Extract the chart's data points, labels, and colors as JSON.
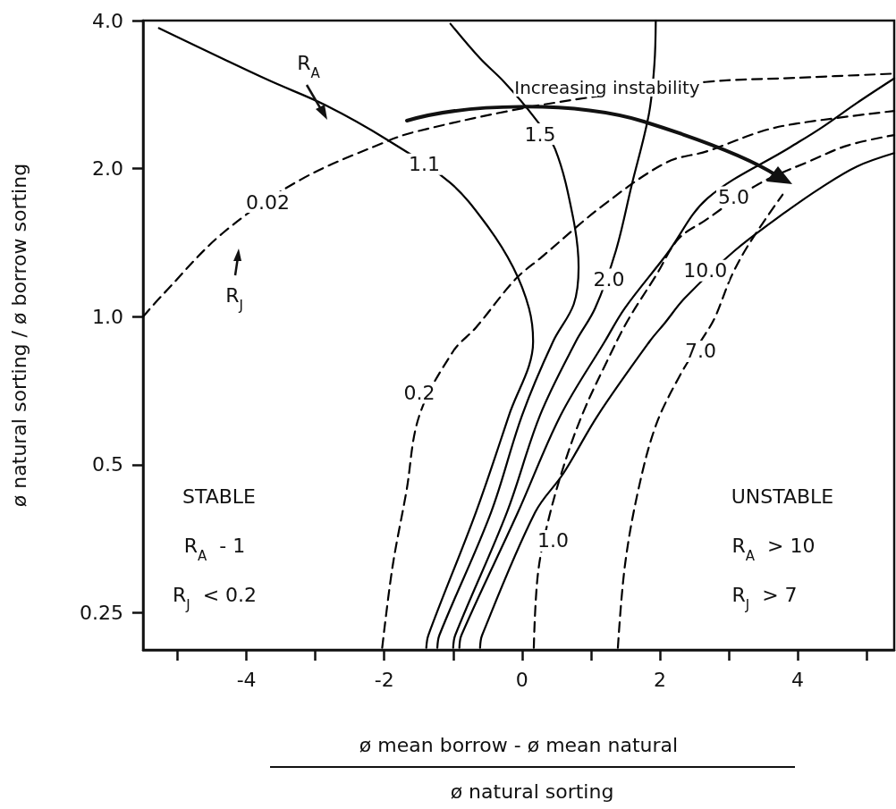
{
  "chart_data": {
    "type": "line",
    "xlabel": "ø mean borrow - ø mean natural",
    "ylabel": "ø natural sorting / ø borrow sorting",
    "log": "y",
    "grid": false,
    "marker": "none",
    "xlim": [
      -5.5,
      5.4
    ],
    "xticks": [
      {
        "value": -5,
        "label": null
      },
      {
        "value": -4,
        "label": "-4"
      },
      {
        "value": -3,
        "label": null
      },
      {
        "value": -2,
        "label": "-2"
      },
      {
        "value": -1,
        "label": null
      },
      {
        "value": 0,
        "label": "0"
      },
      {
        "value": 1,
        "label": null
      },
      {
        "value": 2,
        "label": "2"
      },
      {
        "value": 3,
        "label": null
      },
      {
        "value": 4,
        "label": "4"
      },
      {
        "value": 5,
        "label": null
      }
    ],
    "ylim": [
      0.21,
      4
    ],
    "yticks": [
      {
        "value": 0.25,
        "label": "0.25"
      },
      {
        "value": 0.5,
        "label": "0.5"
      },
      {
        "value": 1,
        "label": "1.0"
      },
      {
        "value": 2,
        "label": "2.0"
      },
      {
        "value": 4,
        "label": "4.0"
      }
    ],
    "series": [
      {
        "color": "#000000",
        "line_style": "solid",
        "x": [
          -5.27,
          -3.69,
          -2.85,
          -1.96,
          -1.04,
          -0.52,
          -0.13,
          0.1,
          0.16,
          -0.19,
          -0.67,
          -1.36,
          -1.39
        ],
        "values": [
          3.86,
          3.03,
          2.69,
          2.29,
          1.87,
          1.54,
          1.26,
          1.04,
          0.89,
          0.63,
          0.4,
          0.225,
          0.212
        ]
      },
      {
        "color": "#000000",
        "line_style": "solid",
        "x": [
          -1.04,
          -0.61,
          -0.26,
          0.16,
          0.48,
          0.74,
          0.82,
          0.75,
          0.45,
          0.0,
          -0.45,
          -1.2,
          -1.23
        ],
        "values": [
          3.94,
          3.35,
          3.0,
          2.56,
          2.19,
          1.59,
          1.26,
          1.06,
          0.89,
          0.63,
          0.4,
          0.225,
          0.212
        ]
      },
      {
        "color": "#000000",
        "line_style": "solid",
        "x": [
          1.94,
          1.92,
          1.84,
          1.59,
          1.36,
          1.06,
          0.78,
          0.26,
          -0.22,
          -0.97,
          -1.0
        ],
        "values": [
          4.0,
          3.26,
          2.58,
          1.85,
          1.36,
          1.04,
          0.89,
          0.63,
          0.4,
          0.225,
          0.212
        ]
      },
      {
        "color": "#000000",
        "line_style": "solid",
        "x": [
          5.4,
          4.86,
          4.34,
          3.89,
          2.69,
          2.1,
          1.49,
          1.2,
          0.56,
          -0.06,
          -0.88,
          -0.91
        ],
        "values": [
          3.05,
          2.72,
          2.42,
          2.21,
          1.74,
          1.34,
          1.04,
          0.89,
          0.63,
          0.4,
          0.225,
          0.212
        ]
      },
      {
        "color": "#000000",
        "line_style": "solid",
        "x": [
          5.4,
          4.86,
          4.34,
          3.82,
          3.08,
          2.36,
          2.07,
          1.85,
          1.1,
          0.6,
          0.19,
          -0.58,
          -0.61
        ],
        "values": [
          2.15,
          2.02,
          1.83,
          1.63,
          1.36,
          1.09,
          0.97,
          0.89,
          0.63,
          0.48,
          0.4,
          0.225,
          0.212
        ]
      },
      {
        "color": "#000000",
        "line_style": "dashed",
        "x": [
          -5.5,
          -5.21,
          -4.34,
          -3.21,
          -1.97,
          -1.58,
          -0.19,
          0.97,
          2.66,
          3.99,
          5.4
        ],
        "values": [
          1.0,
          1.11,
          1.48,
          1.9,
          2.27,
          2.37,
          2.62,
          2.79,
          3.0,
          3.06,
          3.12
        ]
      },
      {
        "color": "#000000",
        "line_style": "dashed",
        "x": [
          -2.03,
          -1.88,
          -1.68,
          -1.49,
          -1.0,
          -0.67,
          -0.1,
          0.28,
          1.19,
          2.1,
          2.69,
          3.47,
          3.99,
          5.4
        ],
        "values": [
          0.212,
          0.31,
          0.44,
          0.63,
          0.85,
          0.95,
          1.19,
          1.32,
          1.69,
          2.06,
          2.17,
          2.38,
          2.47,
          2.62
        ]
      },
      {
        "color": "#000000",
        "line_style": "dashed",
        "x": [
          0.17,
          0.23,
          0.39,
          0.65,
          0.91,
          1.23,
          1.53,
          1.94,
          2.27,
          2.66,
          3.43,
          4.17,
          4.73,
          5.4
        ],
        "values": [
          0.212,
          0.3,
          0.39,
          0.52,
          0.65,
          0.81,
          0.98,
          1.21,
          1.44,
          1.57,
          1.86,
          2.07,
          2.23,
          2.34
        ]
      },
      {
        "color": "#000000",
        "line_style": "dashed",
        "x": [
          1.39,
          1.49,
          1.68,
          1.94,
          2.27,
          2.59,
          2.79,
          3.04,
          3.3,
          3.78
        ],
        "values": [
          0.212,
          0.31,
          0.44,
          0.6,
          0.75,
          0.89,
          0.99,
          1.21,
          1.41,
          1.77
        ]
      }
    ],
    "annotations": [
      {
        "text": "1.1",
        "x": -1.42,
        "y": 2.04
      },
      {
        "text": "1.5",
        "x": 0.26,
        "y": 2.35
      },
      {
        "text": "2.0",
        "x": 1.26,
        "y": 1.19
      },
      {
        "text": "5.0",
        "x": 3.07,
        "y": 1.75
      },
      {
        "text": "10.0",
        "x": 2.66,
        "y": 1.24
      },
      {
        "text": "0.02",
        "x": -3.69,
        "y": 1.71
      },
      {
        "text": "0.2",
        "x": -1.49,
        "y": 0.7
      },
      {
        "text": "1.0",
        "x": 0.45,
        "y": 0.35
      },
      {
        "text": "7.0",
        "x": 2.59,
        "y": 0.85
      },
      "Increasing instability",
      "R$_{A}$",
      "R$_{J}$",
      "STABLE",
      "R$_{A}$  - 1",
      "R$_{J}$  < 0.2",
      "UNSTABLE",
      "R$_{A}$  > 10",
      "R$_{J}$  > 7",
      "ø natural sorting"
    ]
  }
}
